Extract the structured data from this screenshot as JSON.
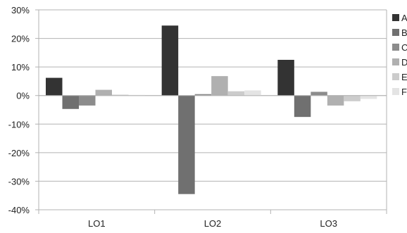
{
  "chart_data": {
    "type": "bar",
    "categories": [
      "LO1",
      "LO2",
      "LO3"
    ],
    "series": [
      {
        "name": "A",
        "color": "#333333",
        "values": [
          6.2,
          24.5,
          12.5
        ]
      },
      {
        "name": "B",
        "color": "#707070",
        "values": [
          -4.7,
          -34.5,
          -7.5
        ]
      },
      {
        "name": "C",
        "color": "#8c8c8c",
        "values": [
          -3.5,
          0.5,
          1.3
        ]
      },
      {
        "name": "D",
        "color": "#b0b0b0",
        "values": [
          2.0,
          6.8,
          -3.5
        ]
      },
      {
        "name": "E",
        "color": "#cccccc",
        "values": [
          0.3,
          1.5,
          -2.0
        ]
      },
      {
        "name": "F",
        "color": "#e4e4e4",
        "values": [
          0.2,
          1.8,
          -1.2
        ]
      }
    ],
    "y_ticks": [
      30,
      20,
      10,
      0,
      -10,
      -20,
      -30,
      -40
    ],
    "y_tick_labels": [
      "30%",
      "20%",
      "10%",
      "0%",
      "-10%",
      "-20%",
      "-30%",
      "-40%"
    ],
    "ylim": [
      -40,
      30
    ],
    "y_unit": "%",
    "grid": true,
    "legend_position": "right",
    "title": "",
    "xlabel": "",
    "ylabel": ""
  }
}
